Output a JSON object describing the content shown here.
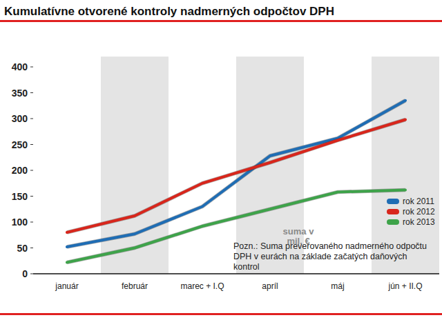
{
  "chart_data": {
    "type": "line",
    "title": "Kumulatívne otvorené kontroly nadmerných odpočtov DPH",
    "categories": [
      "január",
      "február",
      "marec + I.Q",
      "apríl",
      "máj",
      "jún + II.Q"
    ],
    "series": [
      {
        "name": "rok 2011",
        "color": "#1f6db4",
        "values": [
          52,
          77,
          130,
          228,
          262,
          335
        ]
      },
      {
        "name": "rok 2012",
        "color": "#d8261c",
        "values": [
          80,
          112,
          175,
          215,
          258,
          298
        ]
      },
      {
        "name": "rok 2013",
        "color": "#3ea34a",
        "values": [
          22,
          50,
          92,
          125,
          158,
          162
        ]
      }
    ],
    "annotations": [
      "suma v mil. €",
      "Pozn.: Suma preverovaného nadmerného odpočtu DPH v eurách na základe začatých daňových kontrol"
    ],
    "ylim": [
      0,
      400
    ],
    "yticks": [
      0,
      50,
      100,
      150,
      200,
      250,
      300,
      350,
      400
    ],
    "grid": false,
    "legend": "lower right"
  }
}
